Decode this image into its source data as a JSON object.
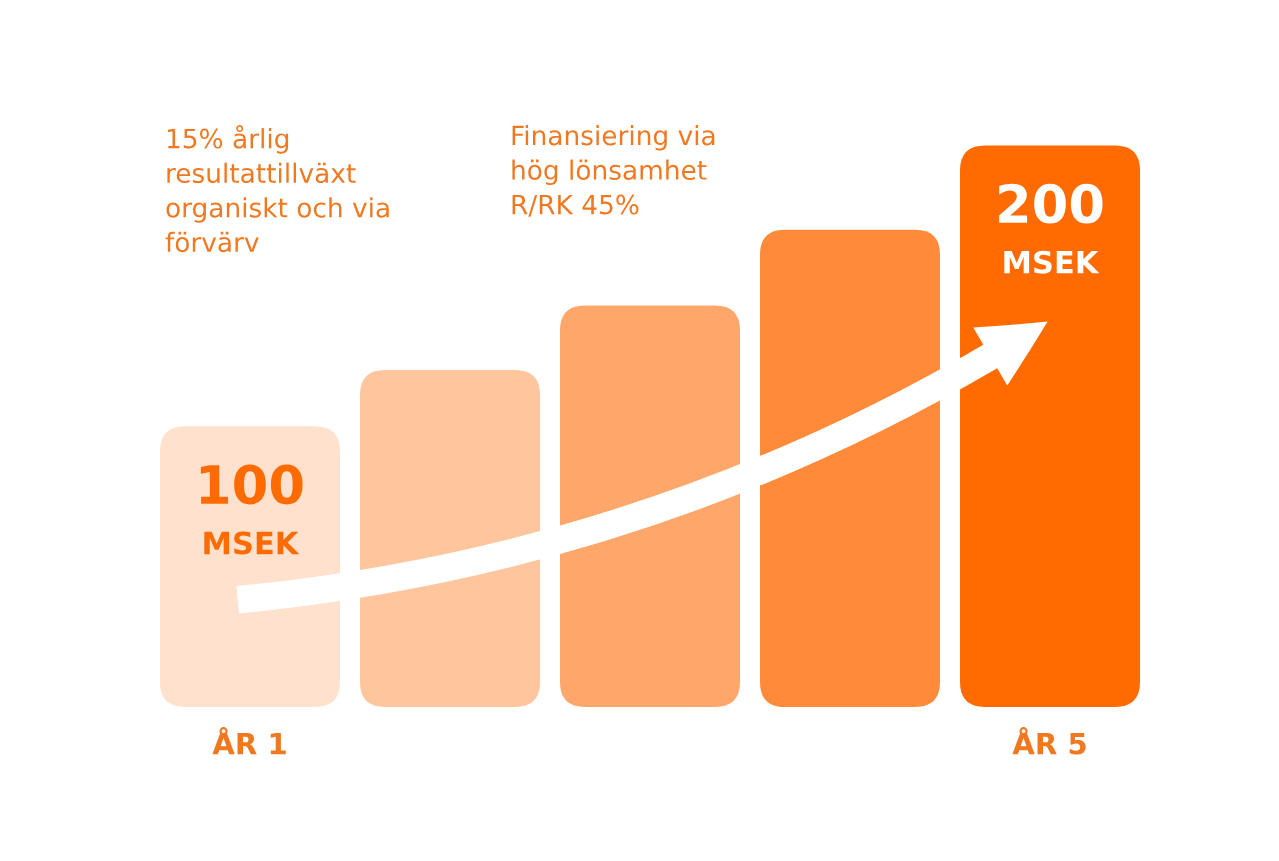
{
  "chart_data": {
    "type": "bar",
    "categories": [
      "ÅR 1",
      null,
      null,
      null,
      "ÅR 5"
    ],
    "values": [
      100,
      120,
      143,
      170,
      200
    ],
    "colors": [
      "#ffe1cd",
      "#ffc69e",
      "#ffa76a",
      "#ff8a3a",
      "#ff6b00"
    ],
    "value_labels": [
      "100\nMSEK",
      null,
      null,
      null,
      "200\nMSEK"
    ],
    "annotations": [
      "15% årlig\nresultattillväxt\norganiskt och via\nförvärv",
      "Finansiering via\nhög lönsamhet\nR/RK 45%"
    ],
    "grid": false
  }
}
